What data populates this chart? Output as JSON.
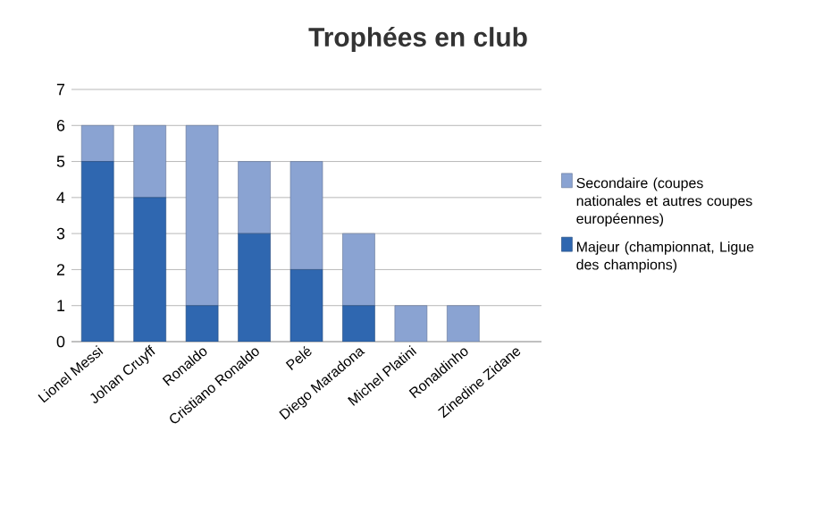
{
  "chart_data": {
    "type": "bar",
    "title": "Trophées en club",
    "stacked": true,
    "grid": "y",
    "legend": "right",
    "categories": [
      "Lionel Messi",
      "Johan Cruyff",
      "Ronaldo",
      "Cristiano Ronaldo",
      "Pelé",
      "Diego Maradona",
      "Michel Platini",
      "Ronaldinho",
      "Zinedine Zidane"
    ],
    "series": [
      {
        "name": "Majeur (championnat, Ligue des champions)",
        "color": "#2f67b0",
        "values": [
          5,
          4,
          1,
          3,
          2,
          1,
          0,
          0,
          0
        ]
      },
      {
        "name": "Secondaire (coupes nationales et autres coupes européennes)",
        "color": "#8aa3d2",
        "values": [
          1,
          2,
          5,
          2,
          3,
          2,
          1,
          1,
          0
        ]
      }
    ],
    "ylim": [
      0,
      7
    ],
    "yticks": [
      0,
      1,
      2,
      3,
      4,
      5,
      6,
      7
    ]
  }
}
